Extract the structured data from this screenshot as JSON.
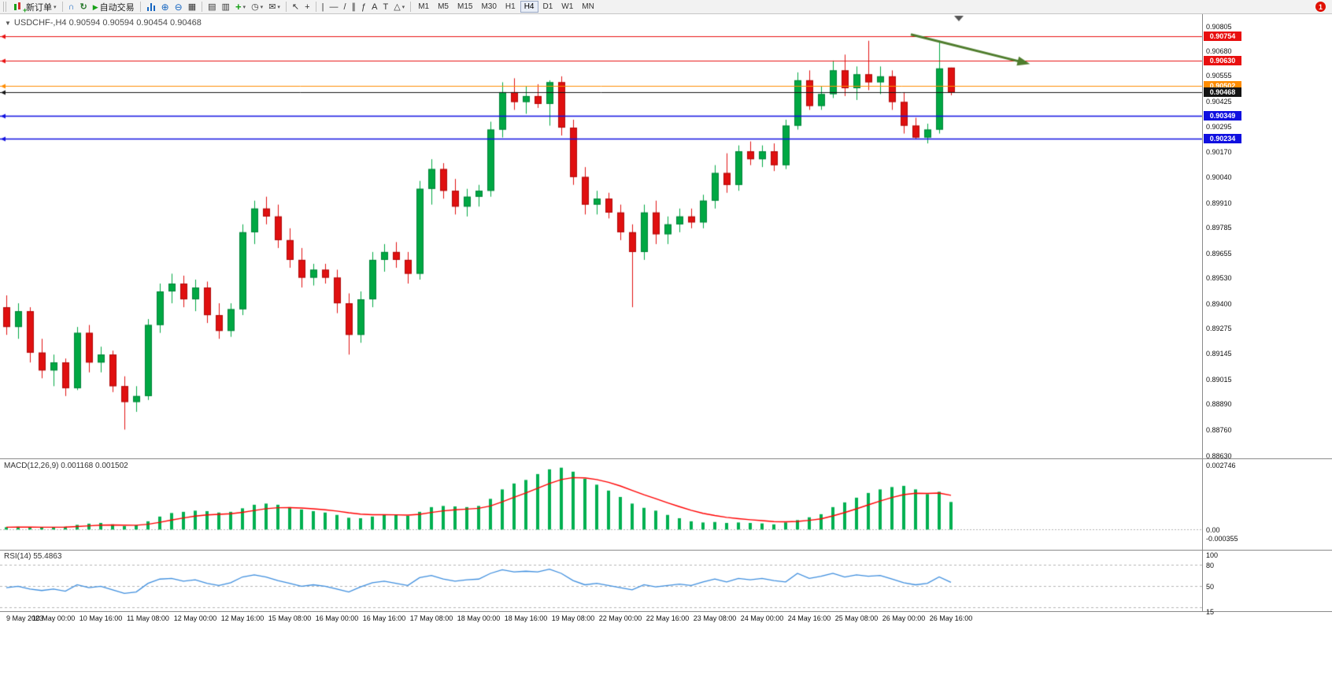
{
  "toolbar": {
    "new_order": "新订单",
    "auto_trading": "自动交易",
    "timeframes": [
      "M1",
      "M5",
      "M15",
      "M30",
      "H1",
      "H4",
      "D1",
      "W1",
      "MN"
    ],
    "active_timeframe": "H4",
    "notification_badge": "1"
  },
  "chart": {
    "symbol_ohlc": "USDCHF-,H4  0.90594 0.90594 0.90454 0.90468",
    "price_scale": [
      "0.90805",
      "0.90680",
      "0.90555",
      "0.90425",
      "0.90295",
      "0.90170",
      "0.90040",
      "0.89910",
      "0.89785",
      "0.89655",
      "0.89530",
      "0.89400",
      "0.89275",
      "0.89145",
      "0.89015",
      "0.88890",
      "0.88760",
      "0.88630"
    ],
    "time_scale": [
      "9 May 2023",
      "10 May 00:00",
      "10 May 16:00",
      "11 May 08:00",
      "12 May 00:00",
      "12 May 16:00",
      "15 May 08:00",
      "16 May 00:00",
      "16 May 16:00",
      "17 May 08:00",
      "18 May 00:00",
      "18 May 16:00",
      "19 May 08:00",
      "22 May 00:00",
      "22 May 16:00",
      "23 May 08:00",
      "24 May 00:00",
      "24 May 16:00",
      "25 May 08:00",
      "26 May 00:00",
      "26 May 16:00"
    ]
  },
  "macd": {
    "label": "MACD(12,26,9) 0.001168 0.001502",
    "scale": [
      "0.002746",
      "0.00",
      "-0.000355"
    ]
  },
  "rsi": {
    "label": "RSI(14) 55.4863",
    "scale": [
      "100",
      "80",
      "50",
      "15"
    ]
  },
  "chart_data": [
    {
      "type": "candlestick",
      "title": "USDCHF- H4",
      "ylim": [
        0.8863,
        0.90805
      ],
      "up_color": "#00A843",
      "down_color": "#E01010",
      "up_border": "#00833A",
      "down_border": "#B00A0A",
      "ohlc": [
        [
          0.8938,
          0.8944,
          0.8924,
          0.8928
        ],
        [
          0.8928,
          0.894,
          0.8922,
          0.8936
        ],
        [
          0.8936,
          0.8938,
          0.891,
          0.8915
        ],
        [
          0.8915,
          0.8922,
          0.8902,
          0.8906
        ],
        [
          0.8906,
          0.8914,
          0.8898,
          0.891
        ],
        [
          0.891,
          0.8912,
          0.8893,
          0.8897
        ],
        [
          0.8897,
          0.8928,
          0.8896,
          0.8925
        ],
        [
          0.8925,
          0.8929,
          0.8905,
          0.891
        ],
        [
          0.891,
          0.8918,
          0.8905,
          0.8914
        ],
        [
          0.8914,
          0.8916,
          0.8895,
          0.8898
        ],
        [
          0.8898,
          0.8903,
          0.8876,
          0.889
        ],
        [
          0.889,
          0.8898,
          0.8885,
          0.8893
        ],
        [
          0.8893,
          0.8932,
          0.8891,
          0.8929
        ],
        [
          0.8929,
          0.895,
          0.8925,
          0.8946
        ],
        [
          0.8946,
          0.8955,
          0.894,
          0.895
        ],
        [
          0.895,
          0.8954,
          0.8938,
          0.8942
        ],
        [
          0.8942,
          0.8952,
          0.8936,
          0.8948
        ],
        [
          0.8948,
          0.8951,
          0.893,
          0.8934
        ],
        [
          0.8934,
          0.894,
          0.8922,
          0.8926
        ],
        [
          0.8926,
          0.894,
          0.8923,
          0.8937
        ],
        [
          0.8937,
          0.898,
          0.8934,
          0.8976
        ],
        [
          0.8976,
          0.8992,
          0.897,
          0.8988
        ],
        [
          0.8988,
          0.8994,
          0.898,
          0.8984
        ],
        [
          0.8984,
          0.899,
          0.8968,
          0.8972
        ],
        [
          0.8972,
          0.8978,
          0.8958,
          0.8962
        ],
        [
          0.8962,
          0.8968,
          0.8948,
          0.8953
        ],
        [
          0.8953,
          0.896,
          0.8949,
          0.8957
        ],
        [
          0.8957,
          0.896,
          0.895,
          0.8953
        ],
        [
          0.8953,
          0.8957,
          0.8935,
          0.894
        ],
        [
          0.894,
          0.8945,
          0.8914,
          0.8924
        ],
        [
          0.8924,
          0.8946,
          0.892,
          0.8942
        ],
        [
          0.8942,
          0.8966,
          0.8938,
          0.8962
        ],
        [
          0.8962,
          0.897,
          0.8956,
          0.8966
        ],
        [
          0.8966,
          0.8971,
          0.8958,
          0.8962
        ],
        [
          0.8962,
          0.8966,
          0.895,
          0.8955
        ],
        [
          0.8955,
          0.9002,
          0.8952,
          0.8998
        ],
        [
          0.8998,
          0.9013,
          0.899,
          0.9008
        ],
        [
          0.9008,
          0.9011,
          0.8993,
          0.8997
        ],
        [
          0.8997,
          0.9003,
          0.8985,
          0.8989
        ],
        [
          0.8989,
          0.8998,
          0.8984,
          0.8994
        ],
        [
          0.8994,
          0.9,
          0.8989,
          0.8997
        ],
        [
          0.8997,
          0.9032,
          0.8994,
          0.9028
        ],
        [
          0.9028,
          0.9052,
          0.9024,
          0.9047
        ],
        [
          0.9047,
          0.9054,
          0.9038,
          0.9042
        ],
        [
          0.9042,
          0.905,
          0.9036,
          0.9045
        ],
        [
          0.9045,
          0.9051,
          0.9039,
          0.9041
        ],
        [
          0.9041,
          0.9053,
          0.903,
          0.9052
        ],
        [
          0.9052,
          0.9055,
          0.9025,
          0.9029
        ],
        [
          0.9029,
          0.9033,
          0.9,
          0.9004
        ],
        [
          0.9004,
          0.9009,
          0.8985,
          0.899
        ],
        [
          0.899,
          0.8997,
          0.8985,
          0.8993
        ],
        [
          0.8993,
          0.8996,
          0.8983,
          0.8986
        ],
        [
          0.8986,
          0.899,
          0.8972,
          0.8976
        ],
        [
          0.8976,
          0.898,
          0.8938,
          0.8966
        ],
        [
          0.8966,
          0.899,
          0.8962,
          0.8986
        ],
        [
          0.8986,
          0.8992,
          0.897,
          0.8975
        ],
        [
          0.8975,
          0.8984,
          0.897,
          0.898
        ],
        [
          0.898,
          0.8988,
          0.8976,
          0.8984
        ],
        [
          0.8984,
          0.8988,
          0.8978,
          0.8981
        ],
        [
          0.8981,
          0.8995,
          0.8978,
          0.8992
        ],
        [
          0.8992,
          0.901,
          0.8988,
          0.9006
        ],
        [
          0.9006,
          0.9016,
          0.8996,
          0.9
        ],
        [
          0.9,
          0.902,
          0.8997,
          0.9017
        ],
        [
          0.9017,
          0.9022,
          0.901,
          0.9013
        ],
        [
          0.9013,
          0.902,
          0.9009,
          0.9017
        ],
        [
          0.9017,
          0.9021,
          0.9007,
          0.901
        ],
        [
          0.901,
          0.9033,
          0.9008,
          0.903
        ],
        [
          0.903,
          0.9057,
          0.9028,
          0.9053
        ],
        [
          0.9053,
          0.9058,
          0.9038,
          0.904
        ],
        [
          0.904,
          0.905,
          0.9038,
          0.9046
        ],
        [
          0.9046,
          0.9063,
          0.9044,
          0.9058
        ],
        [
          0.9058,
          0.9066,
          0.9045,
          0.9049
        ],
        [
          0.9049,
          0.906,
          0.9043,
          0.9056
        ],
        [
          0.9056,
          0.9073,
          0.9048,
          0.9052
        ],
        [
          0.9052,
          0.906,
          0.9046,
          0.9055
        ],
        [
          0.9055,
          0.9058,
          0.9038,
          0.9042
        ],
        [
          0.9042,
          0.9047,
          0.9026,
          0.903
        ],
        [
          0.903,
          0.9034,
          0.9023,
          0.9024
        ],
        [
          0.9024,
          0.9031,
          0.9021,
          0.9028
        ],
        [
          0.9028,
          0.9073,
          0.9026,
          0.9059
        ],
        [
          0.90594,
          0.90594,
          0.90454,
          0.90468
        ]
      ],
      "hlines": [
        {
          "price": 0.90754,
          "label": "0.90754",
          "color": "#E81010",
          "width": 1.2
        },
        {
          "price": 0.9063,
          "label": "0.90630",
          "color": "#E81010",
          "width": 1.2
        },
        {
          "price": 0.90502,
          "label": "0.90502",
          "color": "#FF8C00",
          "width": 1
        },
        {
          "price": 0.90468,
          "label": "0.90468",
          "color": "#141414",
          "width": 1
        },
        {
          "price": 0.90349,
          "label": "0.90349",
          "color": "#1010E0",
          "width": 1.5
        },
        {
          "price": 0.90234,
          "label": "0.90234",
          "color": "#1010E0",
          "width": 1.5
        }
      ],
      "annotation_arrow": {
        "x1_bar": 76.6,
        "price1": 0.90762,
        "x2_bar": 86.3,
        "price2": 0.90618,
        "color": "#4F7D2D"
      }
    },
    {
      "type": "bar",
      "title": "MACD(12,26,9)",
      "ylim": [
        -0.000355,
        0.002746
      ],
      "bar_color": "#00B050",
      "signal_color": "#FF0000",
      "current_macd": 0.001168,
      "current_signal": 0.001502,
      "values": [
        0.0001,
        0.00012,
        0.0001,
        8e-05,
        0.0001,
        0.00012,
        0.0002,
        0.00025,
        0.00028,
        0.00022,
        0.00015,
        0.00018,
        0.00035,
        0.00055,
        0.0007,
        0.00075,
        0.0008,
        0.00078,
        0.00072,
        0.00075,
        0.0009,
        0.00105,
        0.0011,
        0.00105,
        0.00095,
        0.00085,
        0.00078,
        0.00072,
        0.00062,
        0.0005,
        0.00048,
        0.00055,
        0.00062,
        0.00062,
        0.00058,
        0.00075,
        0.00095,
        0.001,
        0.00098,
        0.00095,
        0.001,
        0.0013,
        0.0017,
        0.00195,
        0.0021,
        0.00235,
        0.00255,
        0.00262,
        0.00245,
        0.00215,
        0.0019,
        0.00165,
        0.00138,
        0.0011,
        0.00092,
        0.0008,
        0.00062,
        0.00048,
        0.00035,
        0.0003,
        0.00032,
        0.00028,
        0.0003,
        0.00028,
        0.00026,
        0.00022,
        0.0003,
        0.0004,
        0.00052,
        0.00065,
        0.00095,
        0.00115,
        0.00135,
        0.00155,
        0.0017,
        0.0018,
        0.00185,
        0.0017,
        0.0015,
        0.0016,
        0.001168
      ]
    },
    {
      "type": "line",
      "title": "RSI(14)",
      "ylim": [
        15,
        100
      ],
      "levels": [
        80,
        50,
        20
      ],
      "line_color": "#3E8EDE",
      "current": 55.4863,
      "values": [
        48,
        50,
        46,
        44,
        46,
        43,
        52,
        48,
        50,
        45,
        40,
        42,
        54,
        60,
        61,
        57,
        59,
        54,
        51,
        55,
        63,
        66,
        63,
        58,
        54,
        50,
        52,
        50,
        46,
        42,
        49,
        55,
        57,
        54,
        51,
        62,
        65,
        60,
        57,
        59,
        60,
        68,
        73,
        70,
        71,
        70,
        74,
        68,
        58,
        52,
        54,
        51,
        48,
        45,
        52,
        49,
        51,
        53,
        51,
        56,
        60,
        56,
        61,
        59,
        61,
        58,
        56,
        68,
        61,
        64,
        68,
        63,
        66,
        64,
        65,
        60,
        55,
        52,
        54,
        63,
        55.4863
      ]
    }
  ]
}
